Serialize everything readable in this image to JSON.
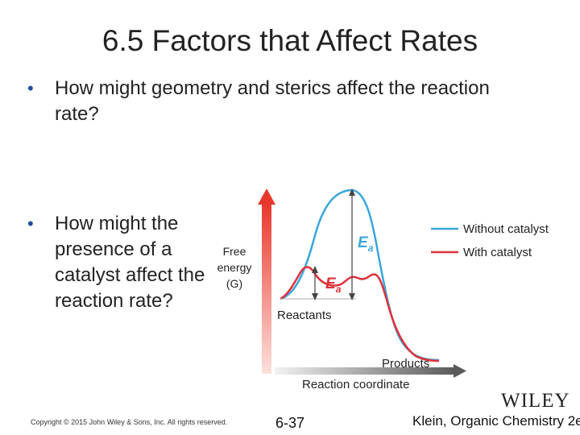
{
  "slide": {
    "title": "6.5 Factors that Affect Rates",
    "bullets": [
      "How might geometry and sterics affect the reaction rate?",
      "How might the presence of a catalyst affect the reaction rate?"
    ],
    "bullet_mark": "•"
  },
  "diagram": {
    "y_axis_label": {
      "line1": "Free",
      "line2": "energy",
      "line3": "(G)"
    },
    "x_axis_label": "Reaction coordinate",
    "reactants_label": "Reactants",
    "products_label": "Products",
    "ea_symbol": "E",
    "ea_subscript": "a",
    "legend": [
      {
        "label": "Without catalyst",
        "color": "#3aa6dc"
      },
      {
        "label": "With catalyst",
        "color": "#e0303a"
      }
    ],
    "axis_color": "#e8382c"
  },
  "footer": {
    "copyright": "Copyright © 2015 John Wiley & Sons, Inc. All rights reserved.",
    "page": "6-37",
    "publisher": "WILEY",
    "credit": "Klein, Organic Chemistry 2e"
  }
}
